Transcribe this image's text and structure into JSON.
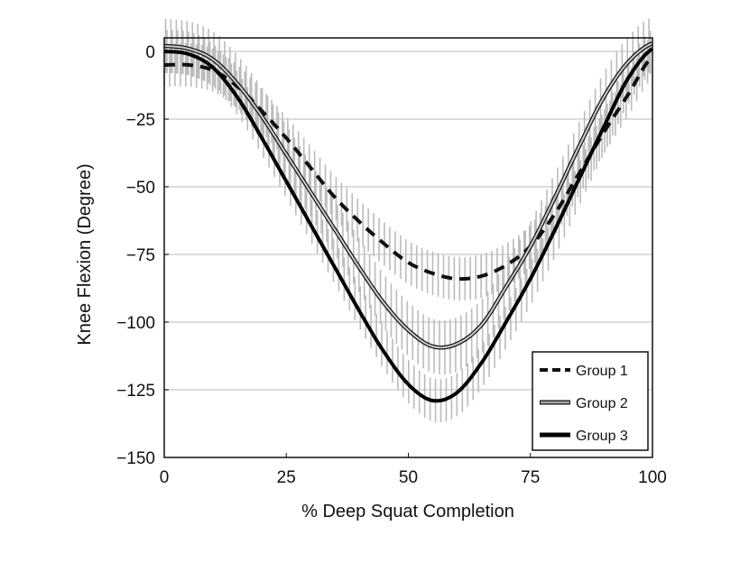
{
  "chart_data": {
    "type": "line",
    "title": "",
    "xlabel": "% Deep Squat Completion",
    "ylabel": "Knee Flexion (Degree)",
    "xlim": [
      0,
      100
    ],
    "ylim": [
      -150,
      5
    ],
    "xticks": [
      "0",
      "25",
      "50",
      "75",
      "100"
    ],
    "xtick_values": [
      0,
      25,
      50,
      75,
      100
    ],
    "yticks": [
      "0",
      "−25",
      "−50",
      "−75",
      "−100",
      "−125",
      "−150"
    ],
    "ytick_values": [
      0,
      -25,
      -50,
      -75,
      -100,
      -125,
      -150
    ],
    "grid": "horizontal",
    "legend_placement": "bottom-right",
    "x": [
      0,
      5,
      10,
      15,
      20,
      25,
      30,
      35,
      40,
      45,
      50,
      55,
      60,
      65,
      70,
      75,
      80,
      85,
      90,
      95,
      100
    ],
    "series": [
      {
        "name": "Group 1",
        "style": "dashed",
        "color": "#111111",
        "values": [
          -5,
          -5,
          -7,
          -13,
          -22,
          -32,
          -43,
          -54,
          -63,
          -71,
          -78,
          -82,
          -84,
          -83,
          -79,
          -72,
          -60,
          -45,
          -30,
          -16,
          -2
        ],
        "error": 8
      },
      {
        "name": "Group 2",
        "style": "double",
        "color": "#888888",
        "values": [
          2,
          1,
          -3,
          -12,
          -24,
          -38,
          -52,
          -66,
          -80,
          -93,
          -103,
          -109,
          -108,
          -101,
          -87,
          -72,
          -54,
          -35,
          -17,
          -4,
          3
        ],
        "error": 10
      },
      {
        "name": "Group 3",
        "style": "solid-thick",
        "color": "#000000",
        "values": [
          0,
          -1,
          -6,
          -17,
          -32,
          -48,
          -64,
          -80,
          -96,
          -111,
          -123,
          -129,
          -126,
          -115,
          -100,
          -84,
          -66,
          -47,
          -28,
          -10,
          1
        ],
        "error": 8
      }
    ],
    "errorbar_color": "#bbbbbb"
  }
}
